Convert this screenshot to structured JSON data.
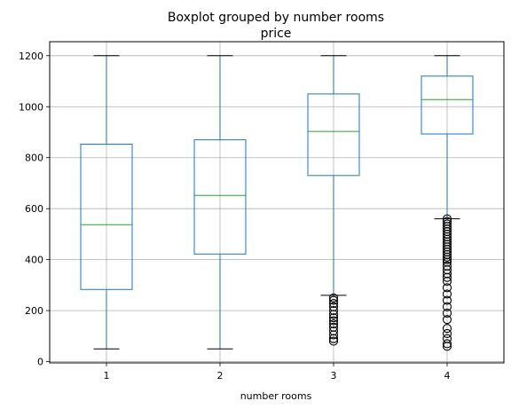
{
  "chart_data": {
    "type": "boxplot",
    "suptitle": "Boxplot grouped by number rooms",
    "title": "price",
    "xlabel": "number rooms",
    "ylabel": "",
    "categories": [
      "1",
      "2",
      "3",
      "4"
    ],
    "ylim": [
      -5,
      1255
    ],
    "yticks": [
      0,
      200,
      400,
      600,
      800,
      1000,
      1200
    ],
    "grid": true,
    "colors": {
      "box": "#1f77b4",
      "median": "#2ca02c",
      "grid": "#b0b0b0",
      "outlier": "#000000"
    },
    "boxes": [
      {
        "label": "1",
        "whisker_low": 50,
        "q1": 283,
        "median": 537,
        "q3": 853,
        "whisker_high": 1200,
        "outliers": []
      },
      {
        "label": "2",
        "whisker_low": 50,
        "q1": 422,
        "median": 652,
        "q3": 870,
        "whisker_high": 1200,
        "outliers": []
      },
      {
        "label": "3",
        "whisker_low": 260,
        "q1": 730,
        "median": 903,
        "q3": 1050,
        "whisker_high": 1200,
        "outliers": [
          250,
          240,
          228,
          215,
          200,
          185,
          172,
          160,
          148,
          135,
          120,
          105,
          90,
          80
        ]
      },
      {
        "label": "4",
        "whisker_low": 560,
        "q1": 893,
        "median": 1028,
        "q3": 1120,
        "whisker_high": 1200,
        "outliers": [
          560,
          550,
          540,
          530,
          520,
          510,
          500,
          490,
          480,
          470,
          460,
          450,
          440,
          430,
          420,
          410,
          400,
          390,
          375,
          360,
          345,
          330,
          315,
          290,
          265,
          240,
          215,
          190,
          165,
          130,
          110,
          90,
          70,
          60
        ]
      }
    ]
  }
}
